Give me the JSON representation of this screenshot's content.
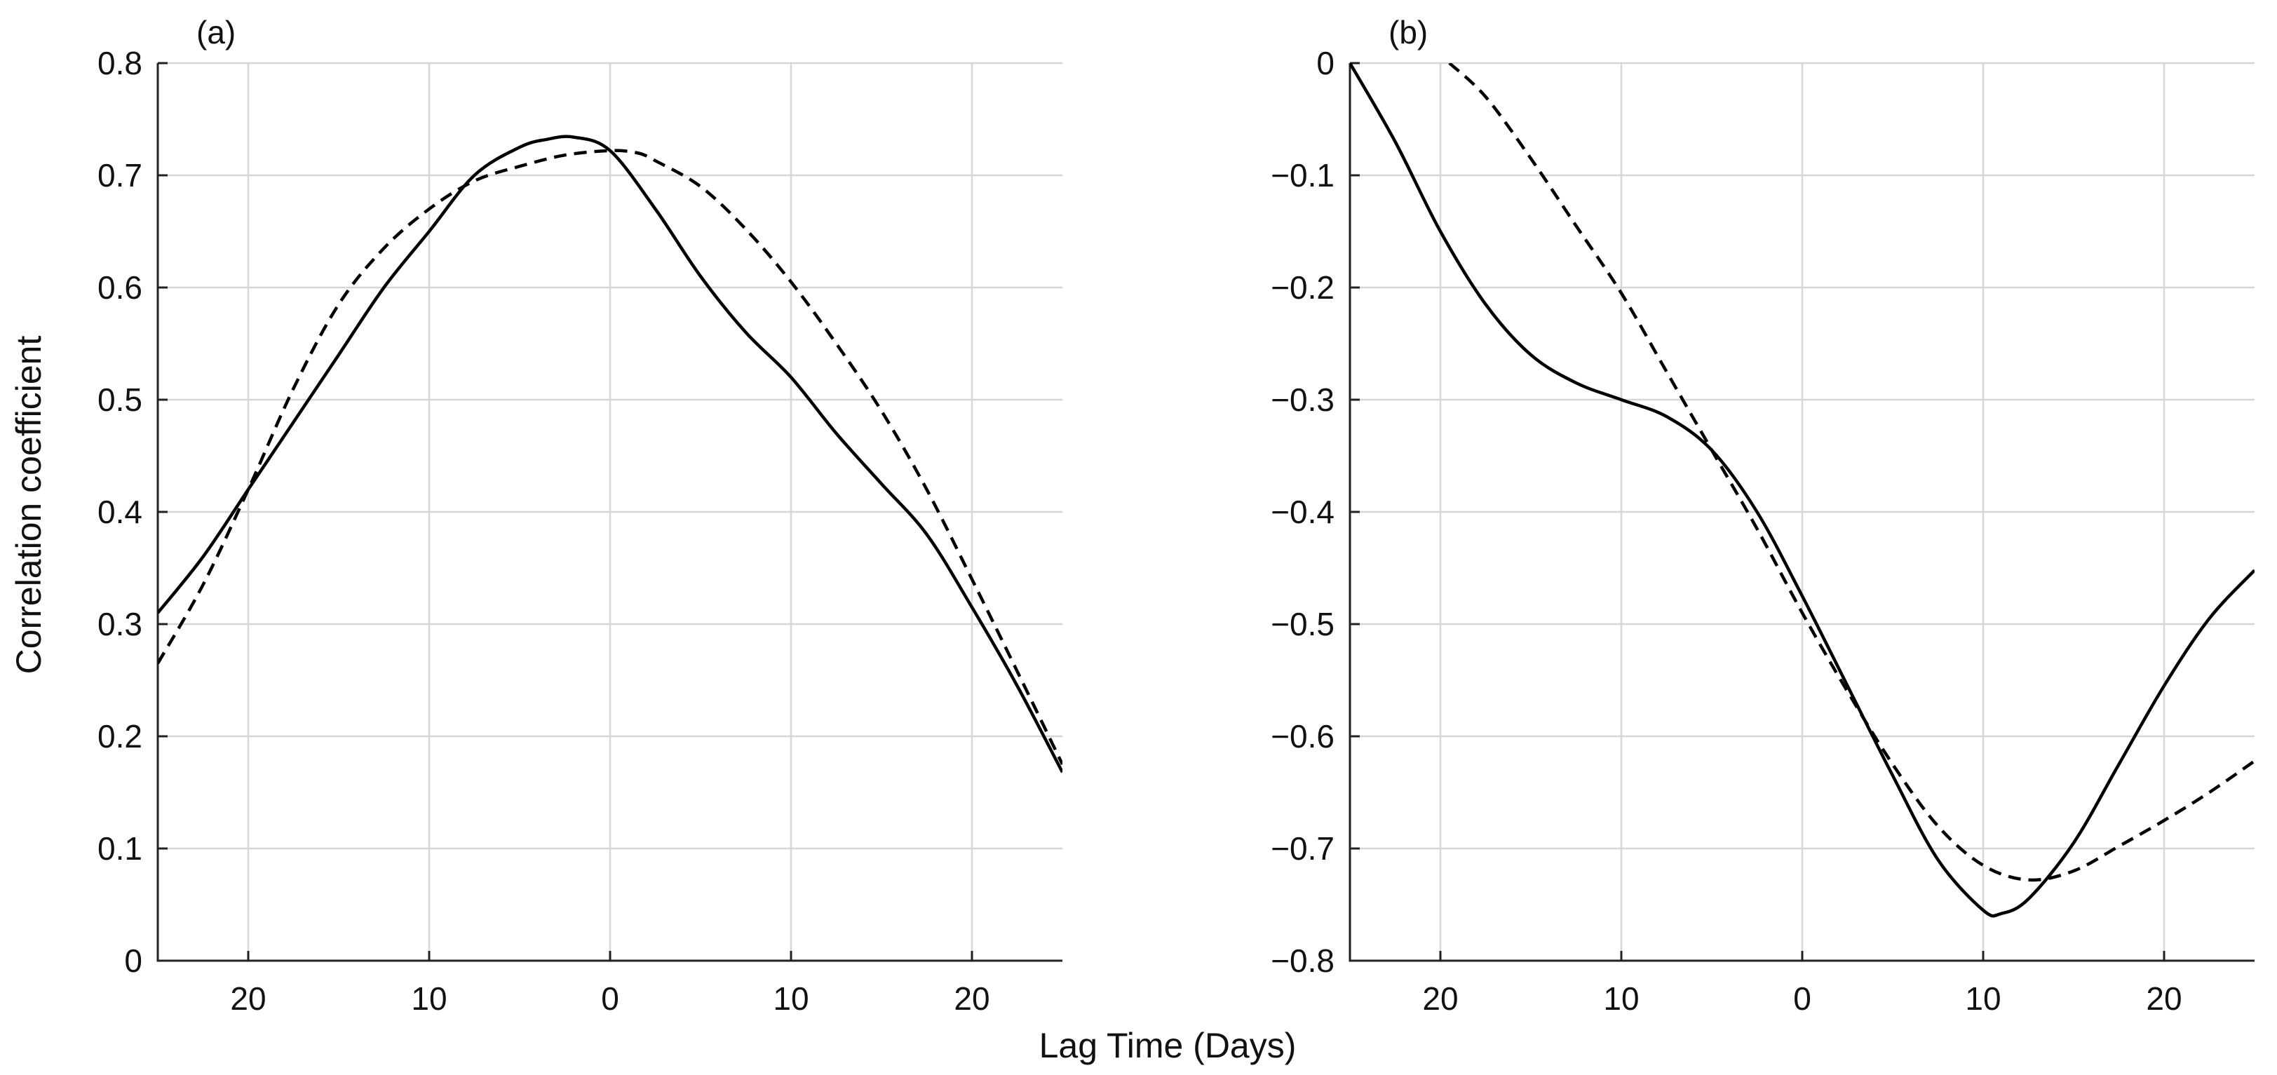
{
  "figure": {
    "shared_xlabel": "Lag Time (Days)",
    "ylabel": "Correlation coefficient"
  },
  "chart_data": [
    {
      "type": "line",
      "panel_label": "(a)",
      "ylabel": "Correlation coefficient",
      "xlabel": "Lag Time (Days)",
      "xlim": [
        -25,
        25
      ],
      "ylim": [
        0,
        0.8
      ],
      "grid": true,
      "xticks": [
        -20,
        -10,
        0,
        10,
        20
      ],
      "xtick_labels": [
        "20",
        "10",
        "0",
        "10",
        "20"
      ],
      "yticks": [
        0,
        0.1,
        0.2,
        0.3,
        0.4,
        0.5,
        0.6,
        0.7,
        0.8
      ],
      "ytick_labels": [
        "0",
        "0.1",
        "0.2",
        "0.3",
        "0.4",
        "0.5",
        "0.6",
        "0.7",
        "0.8"
      ],
      "series": [
        {
          "name": "solid",
          "style": "solid",
          "color": "#000000",
          "x": [
            -25,
            -22.5,
            -20,
            -17.5,
            -15,
            -12.5,
            -10,
            -7.5,
            -5,
            -3.5,
            -2,
            0,
            2.5,
            5,
            7.5,
            10,
            12.5,
            15,
            17.5,
            20,
            22.5,
            25
          ],
          "y": [
            0.31,
            0.36,
            0.42,
            0.48,
            0.54,
            0.6,
            0.65,
            0.7,
            0.725,
            0.732,
            0.734,
            0.722,
            0.67,
            0.61,
            0.56,
            0.52,
            0.47,
            0.425,
            0.38,
            0.315,
            0.245,
            0.168
          ]
        },
        {
          "name": "dashed",
          "style": "dashed",
          "color": "#000000",
          "x": [
            -25,
            -22.5,
            -20,
            -17.5,
            -15,
            -12.5,
            -10,
            -7.5,
            -5,
            -2.5,
            0,
            1.5,
            2.5,
            5,
            7.5,
            10,
            12.5,
            15,
            17.5,
            20,
            22.5,
            25
          ],
          "y": [
            0.265,
            0.335,
            0.42,
            0.51,
            0.585,
            0.635,
            0.67,
            0.695,
            0.708,
            0.718,
            0.722,
            0.72,
            0.713,
            0.69,
            0.652,
            0.605,
            0.55,
            0.49,
            0.42,
            0.34,
            0.258,
            0.175
          ]
        }
      ]
    },
    {
      "type": "line",
      "panel_label": "(b)",
      "ylabel": "",
      "xlabel": "Lag Time (Days)",
      "xlim": [
        -25,
        25
      ],
      "ylim": [
        -0.8,
        0
      ],
      "grid": true,
      "xticks": [
        -20,
        -10,
        0,
        10,
        20
      ],
      "xtick_labels": [
        "20",
        "10",
        "0",
        "10",
        "20"
      ],
      "yticks": [
        -0.8,
        -0.7,
        -0.6,
        -0.5,
        -0.4,
        -0.3,
        -0.2,
        -0.1,
        0
      ],
      "ytick_labels": [
        "−0.8",
        "−0.7",
        "−0.6",
        "−0.5",
        "−0.4",
        "−0.3",
        "−0.2",
        "−0.1",
        "0"
      ],
      "series": [
        {
          "name": "solid",
          "style": "solid",
          "color": "#000000",
          "x": [
            -25,
            -22.5,
            -20,
            -17.5,
            -15,
            -12.5,
            -10,
            -7.5,
            -5,
            -2.5,
            0,
            2.5,
            5,
            7.5,
            10,
            11,
            12.5,
            15,
            17.5,
            20,
            22.5,
            25
          ],
          "y": [
            0,
            -0.07,
            -0.15,
            -0.215,
            -0.26,
            -0.285,
            -0.3,
            -0.315,
            -0.345,
            -0.4,
            -0.475,
            -0.555,
            -0.635,
            -0.71,
            -0.755,
            -0.758,
            -0.745,
            -0.695,
            -0.625,
            -0.555,
            -0.495,
            -0.452
          ]
        },
        {
          "name": "dashed",
          "style": "dashed",
          "color": "#000000",
          "x": [
            -19.5,
            -17.5,
            -15,
            -12.5,
            -10,
            -7.5,
            -5,
            -2.5,
            0,
            2.5,
            5,
            7.5,
            10,
            12.5,
            15,
            17.5,
            20,
            22.5,
            25
          ],
          "y": [
            0,
            -0.03,
            -0.085,
            -0.145,
            -0.205,
            -0.275,
            -0.345,
            -0.415,
            -0.49,
            -0.56,
            -0.625,
            -0.68,
            -0.715,
            -0.728,
            -0.72,
            -0.698,
            -0.675,
            -0.65,
            -0.622
          ]
        }
      ]
    }
  ]
}
